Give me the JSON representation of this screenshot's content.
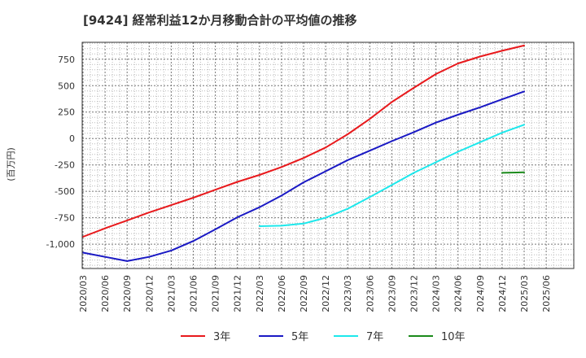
{
  "chart_data": {
    "type": "line",
    "title": "[9424]  経常利益12か月移動合計の平均値の推移",
    "ylabel": "(百万円)",
    "xlabel": "",
    "ylim": [
      -1230,
      910
    ],
    "yticks": [
      750,
      500,
      250,
      0,
      -250,
      -500,
      -750,
      -1000
    ],
    "ytick_labels": [
      "750",
      "500",
      "250",
      "0",
      "-250",
      "-500",
      "-750",
      "-1,000"
    ],
    "xticks": [
      "2020/03",
      "2020/06",
      "2020/09",
      "2020/12",
      "2021/03",
      "2021/06",
      "2021/09",
      "2021/12",
      "2022/03",
      "2022/06",
      "2022/09",
      "2022/12",
      "2023/03",
      "2023/06",
      "2023/09",
      "2023/12",
      "2024/03",
      "2024/06",
      "2024/09",
      "2024/12",
      "2025/03",
      "2025/06"
    ],
    "grid": true,
    "legend_position": "bottom",
    "series": [
      {
        "name": "3年",
        "color": "#e8191c",
        "points": [
          [
            "2020/03",
            -930
          ],
          [
            "2020/06",
            -850
          ],
          [
            "2020/09",
            -775
          ],
          [
            "2020/12",
            -700
          ],
          [
            "2021/03",
            -630
          ],
          [
            "2021/06",
            -560
          ],
          [
            "2021/09",
            -485
          ],
          [
            "2021/12",
            -410
          ],
          [
            "2022/03",
            -345
          ],
          [
            "2022/06",
            -270
          ],
          [
            "2022/09",
            -185
          ],
          [
            "2022/12",
            -85
          ],
          [
            "2023/03",
            40
          ],
          [
            "2023/06",
            185
          ],
          [
            "2023/09",
            345
          ],
          [
            "2023/12",
            480
          ],
          [
            "2024/03",
            610
          ],
          [
            "2024/06",
            710
          ],
          [
            "2024/09",
            775
          ],
          [
            "2024/12",
            830
          ],
          [
            "2025/03",
            880
          ]
        ]
      },
      {
        "name": "5年",
        "color": "#1a19c4",
        "points": [
          [
            "2020/03",
            -1080
          ],
          [
            "2020/06",
            -1120
          ],
          [
            "2020/09",
            -1160
          ],
          [
            "2020/12",
            -1120
          ],
          [
            "2021/03",
            -1060
          ],
          [
            "2021/06",
            -970
          ],
          [
            "2021/09",
            -860
          ],
          [
            "2021/12",
            -745
          ],
          [
            "2022/03",
            -650
          ],
          [
            "2022/06",
            -540
          ],
          [
            "2022/09",
            -415
          ],
          [
            "2022/12",
            -310
          ],
          [
            "2023/03",
            -205
          ],
          [
            "2023/06",
            -115
          ],
          [
            "2023/09",
            -25
          ],
          [
            "2023/12",
            60
          ],
          [
            "2024/03",
            150
          ],
          [
            "2024/06",
            225
          ],
          [
            "2024/09",
            295
          ],
          [
            "2024/12",
            370
          ],
          [
            "2025/03",
            445
          ]
        ]
      },
      {
        "name": "7年",
        "color": "#1de8ec",
        "points": [
          [
            "2022/03",
            -830
          ],
          [
            "2022/06",
            -825
          ],
          [
            "2022/09",
            -805
          ],
          [
            "2022/12",
            -750
          ],
          [
            "2023/03",
            -665
          ],
          [
            "2023/06",
            -555
          ],
          [
            "2023/09",
            -440
          ],
          [
            "2023/12",
            -325
          ],
          [
            "2024/03",
            -225
          ],
          [
            "2024/06",
            -125
          ],
          [
            "2024/09",
            -35
          ],
          [
            "2024/12",
            55
          ],
          [
            "2025/03",
            130
          ]
        ]
      },
      {
        "name": "10年",
        "color": "#1a8a1a",
        "points": [
          [
            "2024/12",
            -325
          ],
          [
            "2025/03",
            -320
          ]
        ]
      }
    ]
  }
}
